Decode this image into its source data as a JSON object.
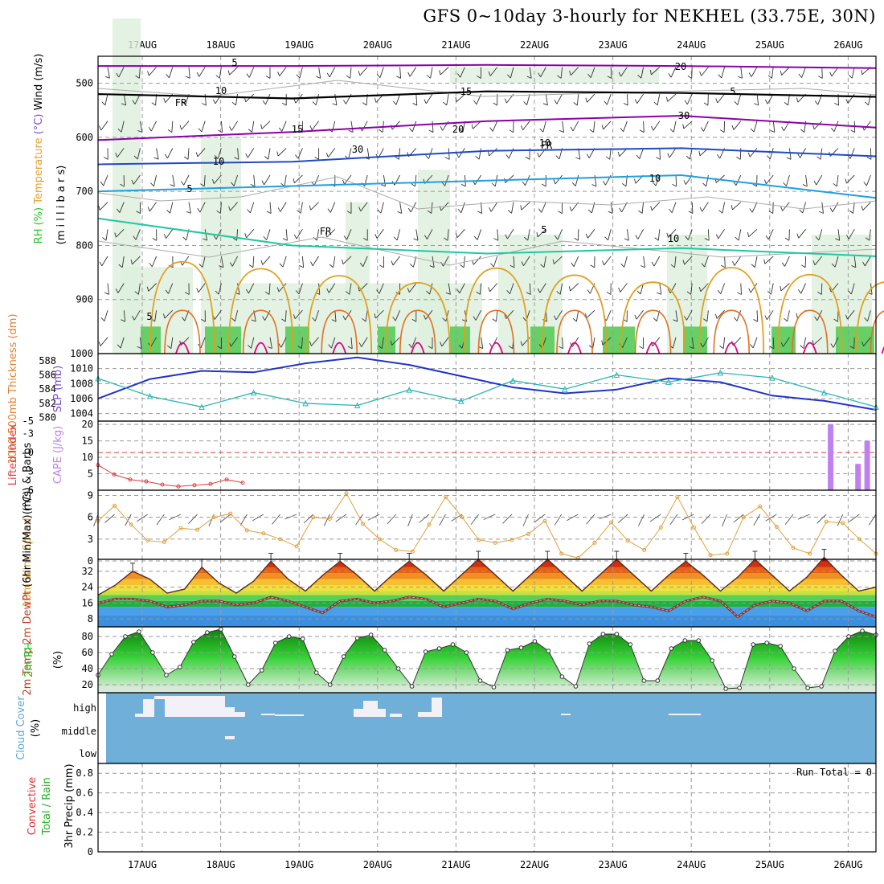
{
  "title": "GFS 0~10day 3-hourly for NEKHEL (33.75E, 30N)",
  "colors": {
    "frame": "#000000",
    "grid": "#999999",
    "wind": "#333333",
    "purple": "#8a00a8",
    "blue": "#1f49c8",
    "lightblue": "#1fa0e0",
    "teal": "#1fc8a0",
    "orange": "#e0a020",
    "darkorange": "#e07020",
    "magenta": "#e0008a",
    "cloud": "#6fafd8",
    "cloud_white": "#f4f0f8",
    "rhfill": "#22c722",
    "cape": "#c080f0",
    "li": "#e03c3c",
    "slp": "#1f33c8",
    "thk": "#2ab5b5",
    "wind10": "#e0a040"
  },
  "chart_data": [
    {
      "id": "upper_air",
      "type": "heatmap",
      "ylabel_parts": [
        "RH (%)",
        "Temperature",
        "(°C)",
        "Wind (m/s)"
      ],
      "ylabel2": "(m i l l i b a r s)",
      "ylim": [
        1000,
        450
      ],
      "yticks": [
        "500",
        "600",
        "700",
        "800",
        "900",
        "1000"
      ],
      "temperature_labels": [
        "5",
        "FR",
        "10",
        "15",
        "20",
        "30",
        "10",
        "5",
        "FR",
        "5",
        "10",
        "15",
        "20",
        "30",
        "FR",
        "10",
        "10",
        "5",
        "5"
      ],
      "isotherms": [
        {
          "name": "5",
          "color": "purple",
          "level": [
            468,
            468,
            466,
            468,
            472
          ]
        },
        {
          "name": "FR",
          "color": "black",
          "level": [
            520,
            528,
            515,
            518,
            525
          ]
        },
        {
          "name": "5b",
          "color": "purple",
          "level": [
            605,
            590,
            570,
            560,
            582
          ]
        },
        {
          "name": "10",
          "color": "blue",
          "level": [
            650,
            645,
            625,
            620,
            635
          ]
        },
        {
          "name": "15",
          "color": "lightblue",
          "level": [
            700,
            690,
            680,
            670,
            712
          ]
        },
        {
          "name": "20",
          "color": "teal",
          "level": [
            750,
            800,
            815,
            805,
            820
          ]
        }
      ]
    },
    {
      "id": "slp_thickness",
      "type": "line",
      "ylabel_left": "1000-500mb Thickness (dm)",
      "ylabel_right": "SLP (mb)",
      "yticks_left": [
        "588",
        "586",
        "584",
        "582",
        "580"
      ],
      "yticks_right": [
        "1010",
        "1008",
        "1006",
        "1004"
      ],
      "series": [
        {
          "name": "SLP",
          "values": [
            1006,
            1008.6,
            1009.7,
            1009.5,
            1010.7,
            1011.5,
            1010.5,
            1009.0,
            1007.5,
            1006.7,
            1007.2,
            1008.7,
            1008.2,
            1006.4,
            1005.7,
            1004.5
          ]
        },
        {
          "name": "Thickness",
          "values": [
            585.5,
            583.0,
            581.5,
            583.5,
            582.0,
            581.7,
            583.9,
            582.3,
            585.2,
            584.0,
            586.0,
            585.0,
            586.3,
            585.6,
            583.5,
            581.5
          ]
        }
      ]
    },
    {
      "id": "cape_li",
      "type": "bar",
      "ylabel_left": "Lifted Index",
      "ylabel_right": "CAPE (J/kg)",
      "yticks_left": [
        "-5",
        "-3",
        "0",
        "3",
        "6"
      ],
      "yticks_right": [
        "20",
        "15",
        "10",
        "5"
      ],
      "cape_values": [
        0,
        0,
        0,
        0,
        0,
        0,
        0,
        0,
        0,
        0,
        0,
        0,
        0,
        0,
        0,
        0,
        0,
        0,
        0,
        0,
        0,
        0,
        0,
        0,
        0,
        0,
        0,
        0,
        0,
        0,
        0,
        0,
        0,
        0,
        0,
        0,
        0,
        0,
        0,
        0,
        0,
        0,
        0,
        0,
        0,
        0,
        0,
        0,
        0,
        0,
        0,
        0,
        0,
        0,
        0,
        0,
        0,
        0,
        0,
        0,
        0,
        0,
        0,
        0,
        0,
        0,
        0,
        0,
        0,
        0,
        0,
        0,
        0,
        0,
        0,
        0,
        0,
        0,
        0,
        0,
        20,
        0,
        0,
        8,
        15,
        0
      ],
      "lifted_index": [
        2,
        3.5,
        4.3,
        4.6,
        5.1,
        5.4,
        5.2,
        5.0,
        4.3,
        4.8
      ]
    },
    {
      "id": "wind10m",
      "type": "line",
      "ylabel_parts": [
        "10m Wind",
        "Speed",
        "(m/s)",
        "& Barbs"
      ],
      "yticks": [
        "9",
        "6",
        "3",
        "0"
      ],
      "ylim": [
        0,
        9.5
      ],
      "values": [
        5.5,
        7.6,
        5.0,
        2.8,
        2.6,
        4.5,
        4.3,
        6.0,
        6.5,
        4.2,
        3.8,
        3.0,
        2.0,
        6.0,
        5.8,
        9.3,
        5.1,
        3.0,
        1.5,
        1.3,
        5.0,
        8.8,
        6.0,
        2.9,
        2.5,
        2.9,
        3.7,
        5.5,
        1.0,
        0.4,
        2.5,
        5.3,
        2.8,
        1.5,
        4.6,
        8.8,
        4.6,
        0.8,
        1.0,
        6.0,
        7.5,
        4.7,
        1.8,
        1.0,
        5.4,
        5.2,
        3.0,
        1.0
      ]
    },
    {
      "id": "temp2m",
      "type": "area",
      "ylabel_parts": [
        "2m Temp",
        "2m DewPt",
        "(6hr Min/Max)",
        "(°C)"
      ],
      "yticks": [
        "32",
        "24",
        "16",
        "8"
      ],
      "ylim": [
        4,
        38
      ],
      "temp": [
        20,
        25,
        32,
        28,
        21,
        23,
        34,
        26,
        21,
        27,
        37,
        28,
        22,
        30,
        37,
        30,
        22,
        30,
        37,
        30,
        22,
        30,
        38,
        30,
        22,
        30,
        38,
        30,
        22,
        30,
        38,
        30,
        22,
        30,
        37,
        30,
        22,
        29,
        38,
        30,
        22,
        29,
        39,
        30,
        22,
        24
      ],
      "dewpoint": [
        16,
        18,
        18,
        17,
        14,
        15,
        17,
        17,
        15,
        16,
        19,
        17,
        14,
        11,
        17,
        18,
        16,
        17,
        19,
        18,
        14,
        16,
        18,
        17,
        13,
        16,
        18,
        17,
        15,
        17,
        17,
        15,
        14,
        12,
        17,
        19,
        17,
        9,
        15,
        17,
        16,
        12,
        17,
        17,
        12,
        9
      ]
    },
    {
      "id": "rh2m",
      "type": "area",
      "ylabel_parts": [
        "2m RH",
        "(%)"
      ],
      "yticks": [
        "80",
        "60",
        "40",
        "20"
      ],
      "ylim": [
        10,
        92
      ],
      "values": [
        32,
        58,
        80,
        86,
        60,
        32,
        42,
        73,
        85,
        89,
        55,
        20,
        38,
        72,
        80,
        77,
        35,
        20,
        55,
        78,
        82,
        63,
        40,
        18,
        61,
        65,
        70,
        60,
        25,
        17,
        63,
        66,
        74,
        62,
        30,
        18,
        71,
        83,
        83,
        70,
        25,
        25,
        65,
        75,
        75,
        50,
        15,
        16,
        70,
        72,
        68,
        40,
        16,
        18,
        62,
        80,
        87,
        82
      ]
    },
    {
      "id": "cloud_cover",
      "type": "heatmap",
      "ylabel_parts": [
        "Cloud Cover",
        "(%)"
      ],
      "levels": [
        "high",
        "middle",
        "low"
      ]
    },
    {
      "id": "precip3h",
      "type": "bar",
      "ylabel_parts": [
        "Total / Rain",
        "Convective",
        "3hr Precip (mm)"
      ],
      "yticks": [
        "0.8",
        "0.6",
        "0.4",
        "0.2",
        "0"
      ],
      "ylim": [
        0,
        0.9
      ],
      "annotation": "Run Total = 0",
      "values": []
    }
  ],
  "xaxis": {
    "dates": [
      "17AUG",
      "18AUG",
      "19AUG",
      "20AUG",
      "21AUG",
      "22AUG",
      "23AUG",
      "24AUG",
      "25AUG",
      "26AUG"
    ]
  }
}
